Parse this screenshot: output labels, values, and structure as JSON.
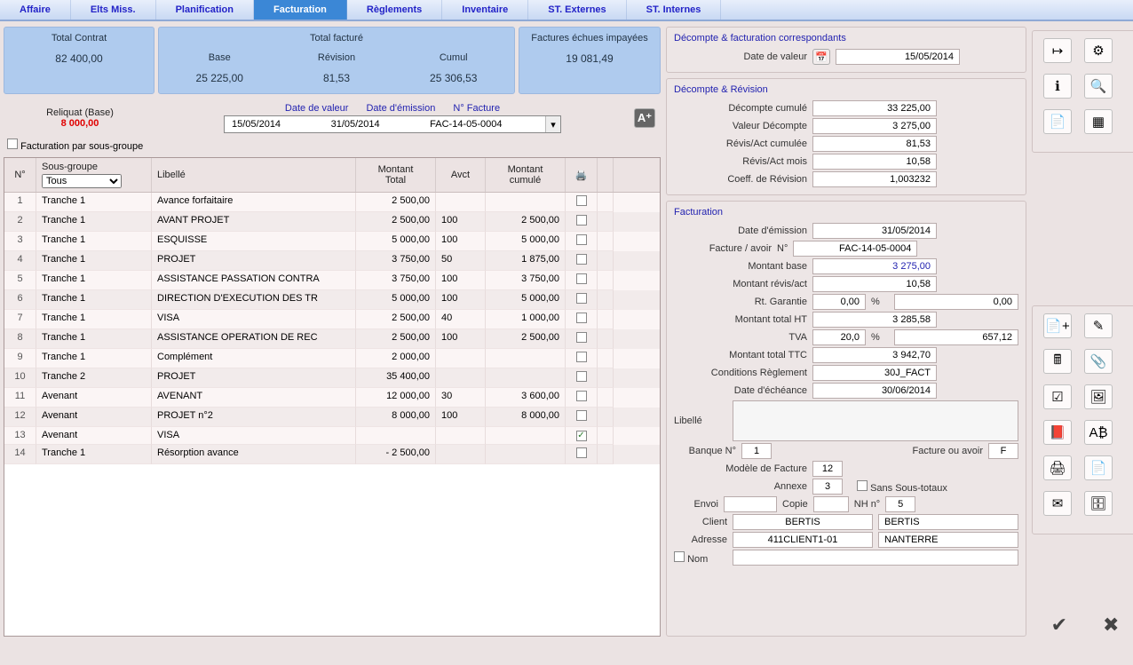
{
  "tabs": [
    {
      "label": "Affaire"
    },
    {
      "label": "Elts Miss."
    },
    {
      "label": "Planification"
    },
    {
      "label": "Facturation",
      "active": true
    },
    {
      "label": "Règlements"
    },
    {
      "label": "Inventaire"
    },
    {
      "label": "ST. Externes"
    },
    {
      "label": "ST. Internes"
    }
  ],
  "summary": {
    "total_contrat_label": "Total Contrat",
    "total_contrat": "82 400,00",
    "total_facture_label": "Total facturé",
    "base_label": "Base",
    "base": "25 225,00",
    "revision_label": "Révision",
    "revision": "81,53",
    "cumul_label": "Cumul",
    "cumul": "25 306,53",
    "factures_echues_label": "Factures échues impayées",
    "factures_echues": "19 081,49"
  },
  "reliquat": {
    "label": "Reliquat (Base)",
    "value": "8 000,00",
    "date_valeur_hdr": "Date de valeur",
    "date_emission_hdr": "Date d'émission",
    "nfacture_hdr": "N° Facture",
    "date_valeur": "15/05/2014",
    "date_emission": "31/05/2014",
    "nfacture": "FAC-14-05-0004"
  },
  "checkbox_sousgroupe_label": "Facturation par sous-groupe",
  "grid_headers": {
    "no": "N°",
    "sousgroupe": "Sous-groupe",
    "tous": "Tous",
    "libelle": "Libellé",
    "montant_total": "Montant\nTotal",
    "avct": "Avct",
    "montant_cumule": "Montant\ncumulé"
  },
  "rows": [
    {
      "n": "1",
      "sg": "Tranche 1",
      "lib": "Avance forfaitaire",
      "mt": "2 500,00",
      "av": "",
      "mc": "",
      "chk": false
    },
    {
      "n": "2",
      "sg": "Tranche 1",
      "lib": "AVANT PROJET",
      "mt": "2 500,00",
      "av": "100",
      "mc": "2 500,00",
      "chk": false
    },
    {
      "n": "3",
      "sg": "Tranche 1",
      "lib": "ESQUISSE",
      "mt": "5 000,00",
      "av": "100",
      "mc": "5 000,00",
      "chk": false
    },
    {
      "n": "4",
      "sg": "Tranche 1",
      "lib": "PROJET",
      "mt": "3 750,00",
      "av": "50",
      "mc": "1 875,00",
      "chk": false
    },
    {
      "n": "5",
      "sg": "Tranche 1",
      "lib": "ASSISTANCE PASSATION CONTRA",
      "mt": "3 750,00",
      "av": "100",
      "mc": "3 750,00",
      "chk": false
    },
    {
      "n": "6",
      "sg": "Tranche 1",
      "lib": "DIRECTION D'EXECUTION DES TR",
      "mt": "5 000,00",
      "av": "100",
      "mc": "5 000,00",
      "chk": false
    },
    {
      "n": "7",
      "sg": "Tranche 1",
      "lib": "VISA",
      "mt": "2 500,00",
      "av": "40",
      "mc": "1 000,00",
      "chk": false
    },
    {
      "n": "8",
      "sg": "Tranche 1",
      "lib": "ASSISTANCE OPERATION DE REC",
      "mt": "2 500,00",
      "av": "100",
      "mc": "2 500,00",
      "chk": false
    },
    {
      "n": "9",
      "sg": "Tranche 1",
      "lib": "Complément",
      "mt": "2 000,00",
      "av": "",
      "mc": "",
      "chk": false
    },
    {
      "n": "10",
      "sg": "Tranche 2",
      "lib": "PROJET",
      "mt": "35 400,00",
      "av": "",
      "mc": "",
      "chk": false
    },
    {
      "n": "11",
      "sg": "Avenant",
      "lib": "AVENANT",
      "mt": "12 000,00",
      "av": "30",
      "mc": "3 600,00",
      "chk": false
    },
    {
      "n": "12",
      "sg": "Avenant",
      "lib": "PROJET n°2",
      "mt": "8 000,00",
      "av": "100",
      "mc": "8 000,00",
      "chk": false
    },
    {
      "n": "13",
      "sg": "Avenant",
      "lib": "VISA",
      "mt": "",
      "av": "",
      "mc": "",
      "chk": true
    },
    {
      "n": "14",
      "sg": "Tranche 1",
      "lib": "Résorption avance",
      "mt": "-   2 500,00",
      "av": "",
      "mc": "",
      "chk": false
    }
  ],
  "right": {
    "decompte_fact_title": "Décompte & facturation correspondants",
    "date_valeur_label": "Date de valeur",
    "date_valeur": "15/05/2014",
    "decompte_rev_title": "Décompte & Révision",
    "decompte_cumule_label": "Décompte cumulé",
    "decompte_cumule": "33 225,00",
    "valeur_decompte_label": "Valeur Décompte",
    "valeur_decompte": "3 275,00",
    "revis_act_cum_label": "Révis/Act cumulée",
    "revis_act_cum": "81,53",
    "revis_act_mois_label": "Révis/Act mois",
    "revis_act_mois": "10,58",
    "coeff_rev_label": "Coeff. de Révision",
    "coeff_rev": "1,003232",
    "fact_title": "Facturation",
    "date_emission_label": "Date d'émission",
    "date_emission": "31/05/2014",
    "facture_avoir_label": "Facture /  avoir",
    "n_label": "N°",
    "facture_n": "FAC-14-05-0004",
    "montant_base_label": "Montant base",
    "montant_base": "3 275,00",
    "montant_revis_label": "Montant révis/act",
    "montant_revis": "10,58",
    "rt_garantie_label": "Rt. Garantie",
    "rt_garantie_pct": "0,00",
    "rt_garantie_val": "0,00",
    "montant_ht_label": "Montant total HT",
    "montant_ht": "3 285,58",
    "tva_label": "TVA",
    "tva_pct": "20,0",
    "tva_val": "657,12",
    "montant_ttc_label": "Montant total TTC",
    "montant_ttc": "3 942,70",
    "cond_regl_label": "Conditions Règlement",
    "cond_regl": "30J_FACT",
    "date_echeance_label": "Date d'échéance",
    "date_echeance": "30/06/2014",
    "libelle_label": "Libellé",
    "banque_label": "Banque N°",
    "banque": "1",
    "fact_ou_avoir_label": "Facture ou  avoir",
    "fact_ou_avoir": "F",
    "modele_label": "Modèle de Facture",
    "modele": "12",
    "annexe_label": "Annexe",
    "annexe": "3",
    "sans_sstot_label": "Sans Sous-totaux",
    "envoi_label": "Envoi",
    "copie_label": "Copie",
    "nh_label": "NH n°",
    "nh": "5",
    "client_label": "Client",
    "client1": "BERTIS",
    "client2": "BERTIS",
    "adresse_label": "Adresse",
    "adresse1": "411CLIENT1-01",
    "adresse2": "NANTERRE",
    "nom_label": "Nom"
  },
  "tool_icons_top": [
    [
      "export-icon",
      "settings-gear-icon"
    ],
    [
      "info-icon",
      "search-mag-icon"
    ],
    [
      "report-icon",
      "table-config-icon"
    ]
  ],
  "tool_icons_mid": [
    [
      "add-doc-icon",
      "edit-doc-icon"
    ],
    [
      "calc-icon",
      "attach-icon"
    ],
    [
      "check-doc-icon",
      "image-icon"
    ],
    [
      "pdf-red-icon",
      "ab-icon"
    ],
    [
      "print-icon",
      "pdf-icon"
    ],
    [
      "send-icon",
      "db-icon"
    ]
  ]
}
